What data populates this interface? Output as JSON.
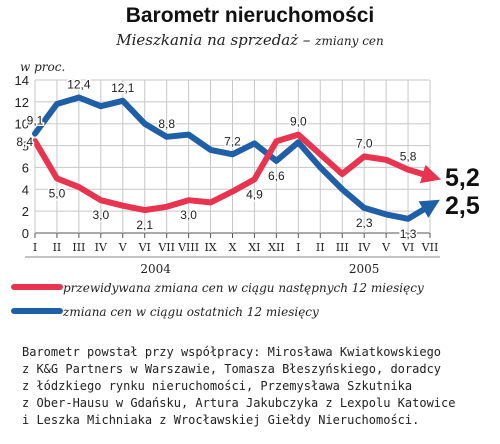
{
  "title": "Barometr nieruchomości",
  "subtitle": "Mieszkania na sprzedaż",
  "subtitle_sep": " – ",
  "subtitle_small": "zmiany cen",
  "colors": {
    "red": "#e8344e",
    "blue": "#1f5fa8",
    "grid": "#c7c7c7"
  },
  "chart_data": {
    "type": "line",
    "ylabel": "w proc.",
    "ylim": [
      0,
      14
    ],
    "yticks": [
      0,
      2,
      4,
      6,
      8,
      10,
      12,
      14
    ],
    "x_labels": [
      "I",
      "II",
      "III",
      "IV",
      "V",
      "VI",
      "VII",
      "VIII",
      "IX",
      "X",
      "XI",
      "XII",
      "I",
      "II",
      "III",
      "IV",
      "V",
      "VI",
      "VII"
    ],
    "year_labels": [
      {
        "label": "2004",
        "index": 5.5
      },
      {
        "label": "2005",
        "index": 15
      }
    ],
    "grid": true,
    "legend_position": "bottom",
    "series": [
      {
        "name": "przewidywana zmiana cen w ciągu następnych 12 miesięcy",
        "color": "#e8344e",
        "x": [
          0,
          1,
          2,
          3,
          4,
          5,
          6,
          7,
          8,
          9,
          10,
          11,
          12,
          13,
          14,
          15,
          16,
          17,
          18
        ],
        "values": [
          8.4,
          5.0,
          4.2,
          3.0,
          2.5,
          2.1,
          2.4,
          3.0,
          2.8,
          3.8,
          4.9,
          8.4,
          9.0,
          7.2,
          5.4,
          7.0,
          6.7,
          5.8,
          5.2
        ],
        "end_label": "5,2"
      },
      {
        "name": "zmiana cen w ciągu ostatnich 12 miesięcy",
        "color": "#1f5fa8",
        "x": [
          0,
          1,
          2,
          3,
          4,
          5,
          6,
          7,
          8,
          9,
          10,
          11,
          12,
          13,
          14,
          15,
          16,
          17,
          18
        ],
        "values": [
          9.1,
          11.8,
          12.4,
          11.6,
          12.1,
          10.0,
          8.8,
          9.0,
          7.6,
          7.2,
          8.2,
          6.6,
          8.3,
          6.0,
          4.0,
          2.3,
          1.7,
          1.3,
          2.5
        ],
        "end_label": "2,5"
      }
    ],
    "data_labels": [
      {
        "text": "8,4",
        "series": 0,
        "index": 0,
        "pos": "left"
      },
      {
        "text": "5,0",
        "series": 0,
        "index": 1,
        "pos": "below"
      },
      {
        "text": "3,0",
        "series": 0,
        "index": 3,
        "pos": "below"
      },
      {
        "text": "2,1",
        "series": 0,
        "index": 5,
        "pos": "below"
      },
      {
        "text": "3,0",
        "series": 0,
        "index": 7,
        "pos": "below"
      },
      {
        "text": "4,9",
        "series": 0,
        "index": 10,
        "pos": "below"
      },
      {
        "text": "9,0",
        "series": 0,
        "index": 12,
        "pos": "above"
      },
      {
        "text": "7,0",
        "series": 0,
        "index": 15,
        "pos": "above"
      },
      {
        "text": "5,8",
        "series": 0,
        "index": 17,
        "pos": "above"
      },
      {
        "text": "9,1",
        "series": 1,
        "index": 0,
        "pos": "above"
      },
      {
        "text": "12,4",
        "series": 1,
        "index": 2,
        "pos": "above"
      },
      {
        "text": "12,1",
        "series": 1,
        "index": 4,
        "pos": "above"
      },
      {
        "text": "8,8",
        "series": 1,
        "index": 6,
        "pos": "above"
      },
      {
        "text": "7,2",
        "series": 1,
        "index": 9,
        "pos": "above"
      },
      {
        "text": "6,6",
        "series": 1,
        "index": 11,
        "pos": "below"
      },
      {
        "text": "2,3",
        "series": 1,
        "index": 15,
        "pos": "below"
      },
      {
        "text": "1,3",
        "series": 1,
        "index": 17,
        "pos": "below"
      }
    ]
  },
  "footnote": [
    "Barometr powstał przy współpracy: Mirosława Kwiatkowskiego",
    "z K&G Partners w Warszawie, Tomasza Błeszyńskiego, doradcy",
    "z łódzkiego rynku nieruchomości, Przemysława Szkutnika",
    "z Ober-Hausu w Gdańsku, Artura Jakubczyka z Lexpolu Katowice",
    "i Leszka Michniaka z Wrocławskiej Giełdy Nieruchomości."
  ]
}
